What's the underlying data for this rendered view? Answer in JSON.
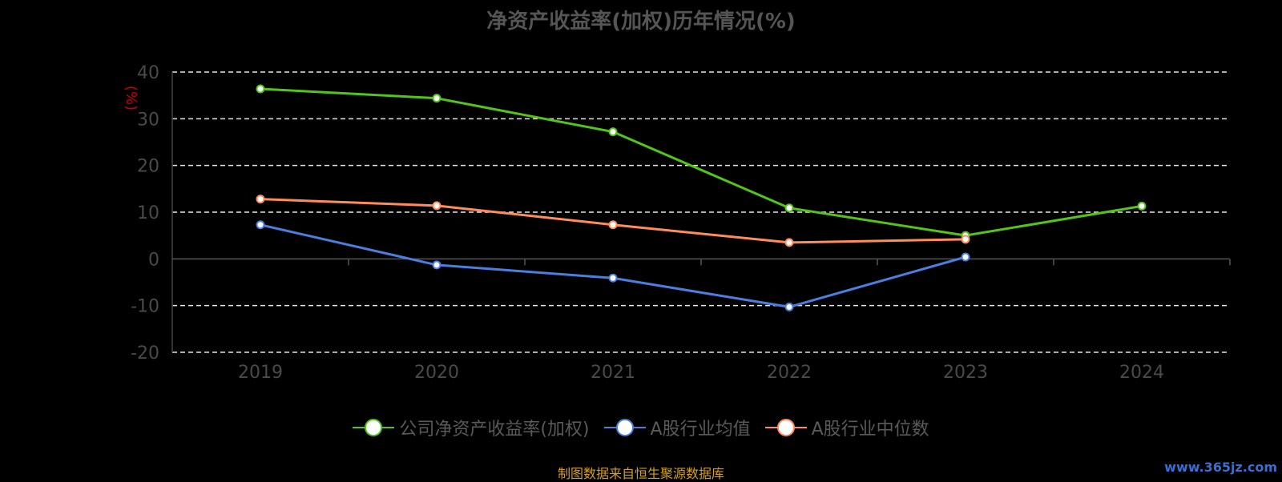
{
  "chart_data": {
    "type": "line",
    "title": "净资产收益率(加权)历年情况(%)",
    "ylabel": "(%)",
    "categories": [
      "2019",
      "2020",
      "2021",
      "2022",
      "2023",
      "2024"
    ],
    "ylim": [
      -20,
      40
    ],
    "yticks": [
      40,
      30,
      20,
      10,
      0,
      -10,
      -20
    ],
    "grid": true,
    "legend_position": "bottom",
    "series": [
      {
        "name": "公司净资产收益率(加权)",
        "color": "#52c41a",
        "values": [
          36.4,
          34.4,
          27.2,
          10.9,
          5.0,
          11.3
        ]
      },
      {
        "name": "A股行业均值",
        "color": "#4a7fe0",
        "values": [
          7.3,
          -1.3,
          -4.1,
          -10.3,
          0.4,
          null
        ]
      },
      {
        "name": "A股行业中位数",
        "color": "#ff8c5a",
        "values": [
          12.8,
          11.4,
          7.3,
          3.5,
          4.2,
          null
        ]
      }
    ]
  },
  "source_text": "制图数据来自恒生聚源数据库",
  "watermark": "www.365jz.com"
}
